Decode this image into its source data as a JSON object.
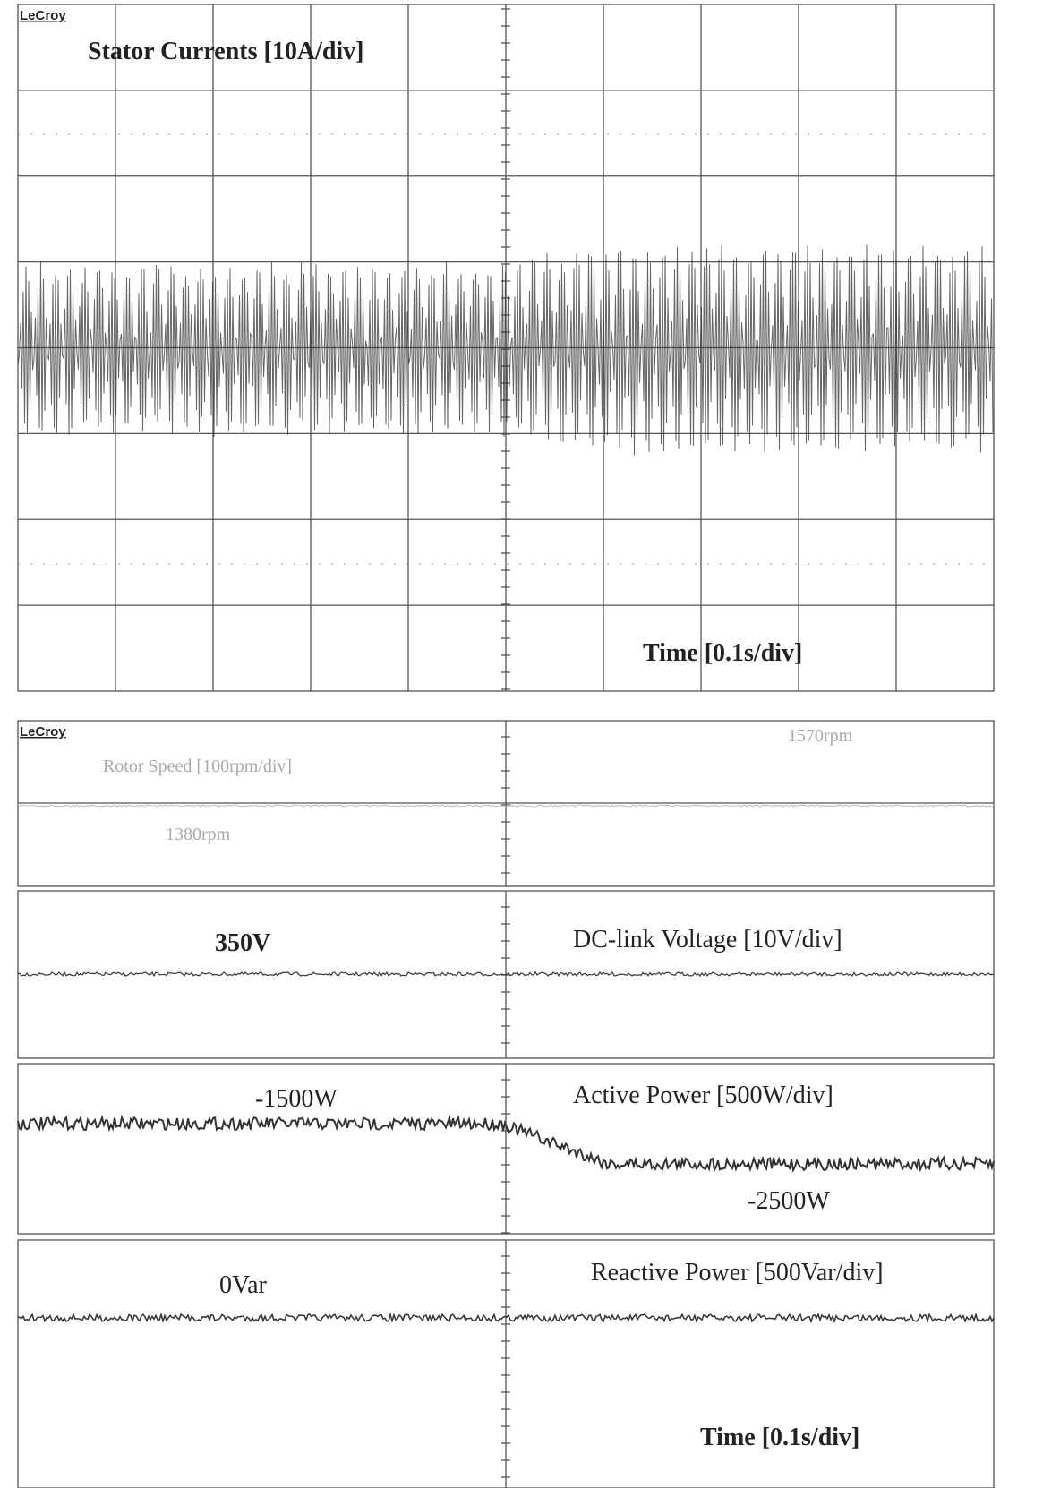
{
  "top_scope": {
    "brand": "LeCroy",
    "title": "Stator Currents [10A/div]",
    "time_label": "Time [0.1s/div]"
  },
  "bottom_scope": {
    "brand": "LeCroy",
    "rotor": {
      "title": "Rotor Speed [100rpm/div]",
      "high": "1570rpm",
      "low": "1380rpm"
    },
    "dc": {
      "level": "350V",
      "title": "DC-link Voltage [10V/div]"
    },
    "active": {
      "before": "-1500W",
      "title": "Active Power [500W/div]",
      "after": "-2500W"
    },
    "reactive": {
      "level": "0Var",
      "title": "Reactive Power [500Var/div]"
    },
    "time_label": "Time [0.1s/div]"
  }
}
